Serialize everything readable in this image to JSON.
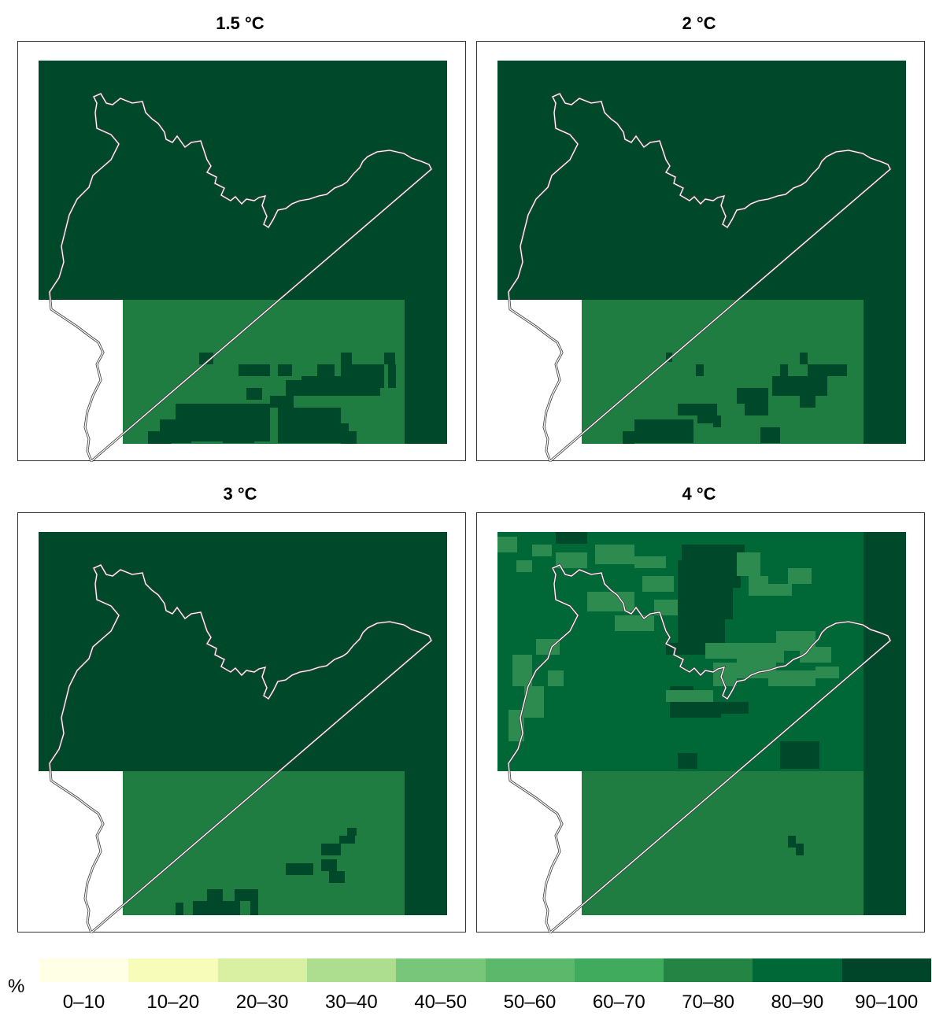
{
  "panels": [
    {
      "title": "1.5 °C"
    },
    {
      "title": "2 °C"
    },
    {
      "title": "3 °C"
    },
    {
      "title": "4 °C"
    }
  ],
  "colors": {
    "high": "#00482a",
    "mid": "#1f7d42",
    "alt": "#006837",
    "light": "#2e8b4f",
    "outline": "#ffffff",
    "outline_stroke": "#444444"
  },
  "legend": {
    "unit": "%",
    "classes": [
      {
        "label": "0–10",
        "color": "#ffffe5"
      },
      {
        "label": "10–20",
        "color": "#f7fcb9"
      },
      {
        "label": "20–30",
        "color": "#d9f0a3"
      },
      {
        "label": "30–40",
        "color": "#addd8e"
      },
      {
        "label": "40–50",
        "color": "#78c679"
      },
      {
        "label": "50–60",
        "color": "#5cb86a"
      },
      {
        "label": "60–70",
        "color": "#41ab5d"
      },
      {
        "label": "70–80",
        "color": "#238443"
      },
      {
        "label": "80–90",
        "color": "#006837"
      },
      {
        "label": "90–100",
        "color": "#004529"
      }
    ]
  }
}
